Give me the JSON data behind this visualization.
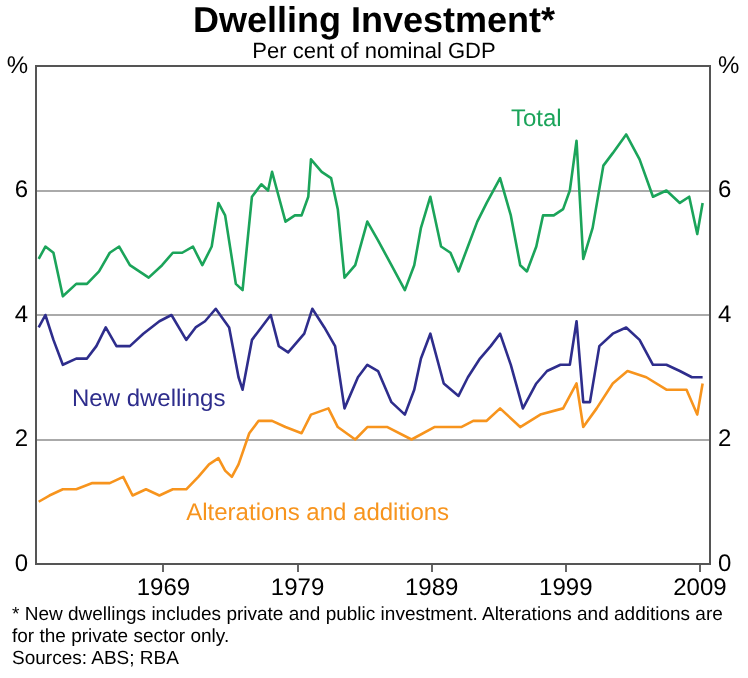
{
  "chart_data": {
    "type": "line",
    "title": "Dwelling Investment*",
    "subtitle": "Per cent of nominal GDP",
    "annotations": [
      "*  New dwellings includes private and public investment. Alterations and additions are for the private sector only.",
      "Sources: ABS; RBA"
    ],
    "xlim": [
      1959.5,
      2009.75
    ],
    "xticks": [
      1969,
      1979,
      1989,
      1999,
      2009
    ],
    "ylim": [
      0,
      8
    ],
    "yticks": [
      0,
      2,
      4,
      6,
      {
        "value": 8,
        "label": "%"
      }
    ],
    "y2lim": [
      0,
      8
    ],
    "y2ticks": [
      0,
      2,
      4,
      6,
      {
        "value": 8,
        "label": "%"
      }
    ],
    "grid": "y",
    "legend": false,
    "marker": "none",
    "line_style": "solid",
    "series": [
      {
        "name": "Total",
        "color": "#1ba45a",
        "x": [
          1959.7,
          1960.2,
          1960.8,
          1961.5,
          1962.5,
          1963.3,
          1964.2,
          1965.0,
          1965.7,
          1966.5,
          1967.2,
          1967.9,
          1968.9,
          1969.7,
          1970.4,
          1971.2,
          1971.9,
          1972.6,
          1973.1,
          1973.6,
          1974.4,
          1974.9,
          1975.6,
          1976.3,
          1976.8,
          1977.1,
          1977.6,
          1978.1,
          1978.8,
          1979.3,
          1979.8,
          1980.0,
          1980.8,
          1981.5,
          1982.0,
          1982.5,
          1983.3,
          1984.2,
          1985.0,
          1986.0,
          1987.0,
          1987.7,
          1988.2,
          1988.9,
          1989.7,
          1990.4,
          1991.0,
          1991.7,
          1992.4,
          1993.1,
          1994.1,
          1994.9,
          1995.6,
          1996.1,
          1996.8,
          1997.3,
          1998.1,
          1998.8,
          1999.3,
          1999.8,
          2000.3,
          2001.0,
          2001.8,
          2002.5,
          2003.5,
          2004.5,
          2005.5,
          2006.5,
          2007.5,
          2008.2,
          2008.8,
          2009.2
        ],
        "values": [
          4.9,
          5.1,
          5.0,
          4.3,
          4.5,
          4.5,
          4.7,
          5.0,
          5.1,
          4.8,
          4.7,
          4.6,
          4.8,
          5.0,
          5.0,
          5.1,
          4.8,
          5.1,
          5.8,
          5.6,
          4.5,
          4.4,
          5.9,
          6.1,
          6.0,
          6.3,
          5.9,
          5.5,
          5.6,
          5.6,
          5.9,
          6.5,
          6.3,
          6.2,
          5.7,
          4.6,
          4.8,
          5.5,
          5.2,
          4.8,
          4.4,
          4.8,
          5.4,
          5.9,
          5.1,
          5.0,
          4.7,
          5.1,
          5.5,
          5.8,
          6.2,
          5.6,
          4.8,
          4.7,
          5.1,
          5.6,
          5.6,
          5.7,
          6.0,
          6.8,
          4.9,
          5.4,
          6.4,
          6.6,
          6.9,
          6.5,
          5.9,
          6.0,
          5.8,
          5.9,
          5.3,
          5.8
        ]
      },
      {
        "name": "New dwellings",
        "color": "#2e2d8c",
        "x": [
          1959.7,
          1960.2,
          1960.8,
          1961.5,
          1962.5,
          1963.3,
          1964.0,
          1964.7,
          1965.5,
          1966.5,
          1967.5,
          1968.7,
          1969.6,
          1970.7,
          1971.4,
          1972.1,
          1972.9,
          1973.9,
          1974.6,
          1974.9,
          1975.6,
          1976.3,
          1977.0,
          1977.6,
          1978.3,
          1979.5,
          1980.1,
          1981.0,
          1981.8,
          1982.5,
          1983.5,
          1984.2,
          1985.0,
          1986.0,
          1987.0,
          1987.7,
          1988.2,
          1988.9,
          1989.9,
          1991.0,
          1991.7,
          1992.6,
          1993.4,
          1994.1,
          1994.9,
          1995.8,
          1996.8,
          1997.6,
          1998.6,
          1999.3,
          1999.8,
          2000.3,
          2000.8,
          2001.5,
          2002.5,
          2003.5,
          2004.5,
          2005.5,
          2006.5,
          2007.5,
          2008.4,
          2009.2
        ],
        "values": [
          3.8,
          4.0,
          3.6,
          3.2,
          3.3,
          3.3,
          3.5,
          3.8,
          3.5,
          3.5,
          3.7,
          3.9,
          4.0,
          3.6,
          3.8,
          3.9,
          4.1,
          3.8,
          3.0,
          2.8,
          3.6,
          3.8,
          4.0,
          3.5,
          3.4,
          3.7,
          4.1,
          3.8,
          3.5,
          2.5,
          3.0,
          3.2,
          3.1,
          2.6,
          2.4,
          2.8,
          3.3,
          3.7,
          2.9,
          2.7,
          3.0,
          3.3,
          3.5,
          3.7,
          3.2,
          2.5,
          2.9,
          3.1,
          3.2,
          3.2,
          3.9,
          2.6,
          2.6,
          3.5,
          3.7,
          3.8,
          3.6,
          3.2,
          3.2,
          3.1,
          3.0,
          3.0
        ]
      },
      {
        "name": "Alterations and additions",
        "color": "#f7941d",
        "x": [
          1959.7,
          1960.5,
          1961.5,
          1962.5,
          1963.7,
          1965.0,
          1966.0,
          1966.7,
          1967.7,
          1968.7,
          1969.7,
          1970.7,
          1971.6,
          1972.4,
          1973.1,
          1973.6,
          1974.1,
          1974.6,
          1975.4,
          1976.1,
          1977.1,
          1978.1,
          1979.3,
          1980.0,
          1981.3,
          1982.0,
          1983.3,
          1984.2,
          1985.7,
          1987.5,
          1989.2,
          1991.2,
          1992.1,
          1993.1,
          1994.1,
          1995.6,
          1997.1,
          1998.8,
          1999.8,
          2000.3,
          2001.3,
          2002.5,
          2003.6,
          2005.0,
          2006.5,
          2008.0,
          2008.8,
          2009.2
        ],
        "values": [
          1.0,
          1.1,
          1.2,
          1.2,
          1.3,
          1.3,
          1.4,
          1.1,
          1.2,
          1.1,
          1.2,
          1.2,
          1.4,
          1.6,
          1.7,
          1.5,
          1.4,
          1.6,
          2.1,
          2.3,
          2.3,
          2.2,
          2.1,
          2.4,
          2.5,
          2.2,
          2.0,
          2.2,
          2.2,
          2.0,
          2.2,
          2.2,
          2.3,
          2.3,
          2.5,
          2.2,
          2.4,
          2.5,
          2.9,
          2.2,
          2.5,
          2.9,
          3.1,
          3.0,
          2.8,
          2.8,
          2.4,
          2.9
        ]
      }
    ]
  }
}
